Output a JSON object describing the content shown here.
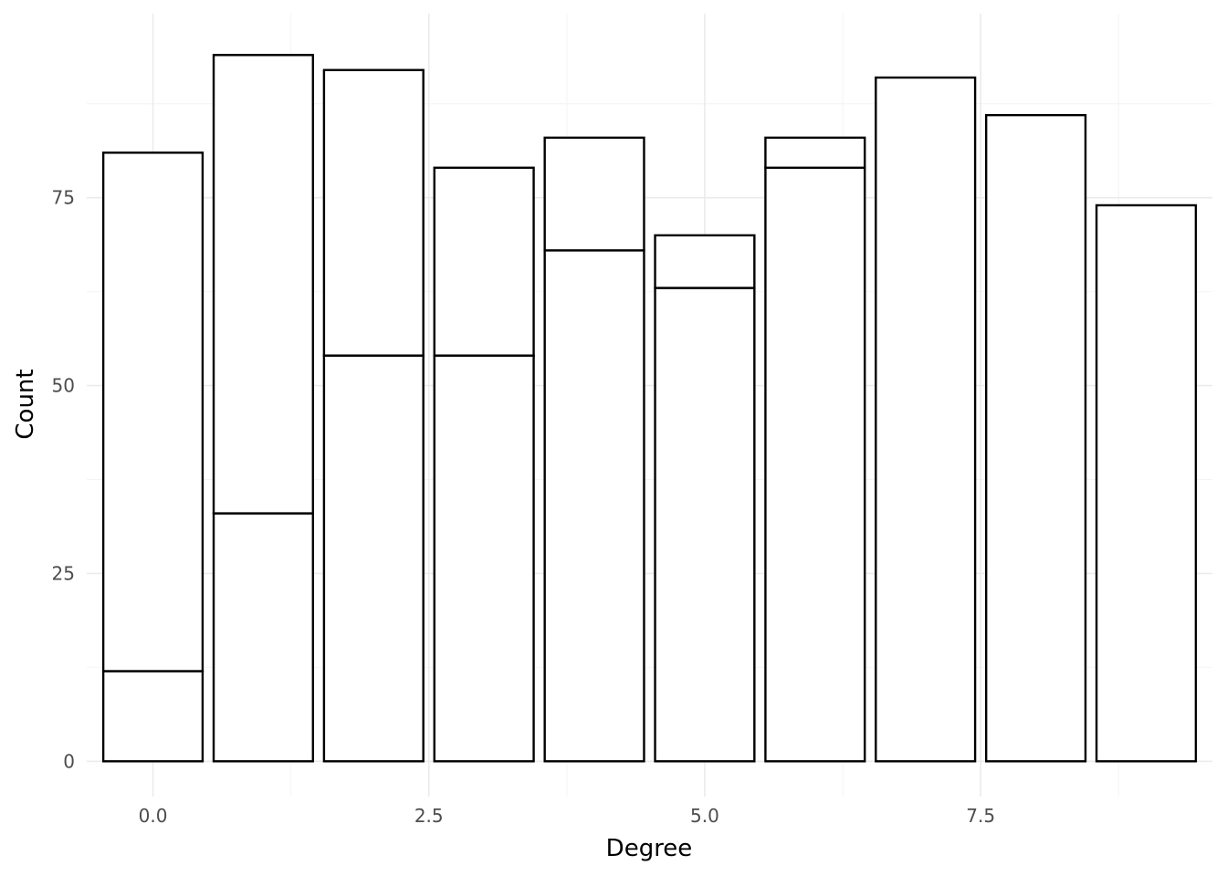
{
  "chart_data": {
    "type": "bar",
    "stacked": true,
    "xlabel": "Degree",
    "ylabel": "Count",
    "x": [
      0,
      1,
      2,
      3,
      4,
      5,
      6,
      7,
      8,
      9
    ],
    "segment_tops": [
      [
        12,
        81
      ],
      [
        33,
        94
      ],
      [
        54,
        92
      ],
      [
        54,
        79
      ],
      [
        68,
        83
      ],
      [
        63,
        70
      ],
      [
        79,
        83
      ],
      [
        91
      ],
      [
        86
      ],
      [
        74
      ]
    ],
    "xlim": [
      -0.6,
      9.6
    ],
    "ylim": [
      -4.7,
      99.5
    ],
    "x_ticks": [
      {
        "value": 0,
        "label": "0.0"
      },
      {
        "value": 2.5,
        "label": "2.5"
      },
      {
        "value": 5,
        "label": "5.0"
      },
      {
        "value": 7.5,
        "label": "7.5"
      }
    ],
    "y_ticks": [
      {
        "value": 0,
        "label": "0"
      },
      {
        "value": 25,
        "label": "25"
      },
      {
        "value": 50,
        "label": "50"
      },
      {
        "value": 75,
        "label": "75"
      }
    ],
    "bar_fill": "#ffffff",
    "bar_outline": "#000000",
    "grid": true,
    "legend": "none"
  }
}
